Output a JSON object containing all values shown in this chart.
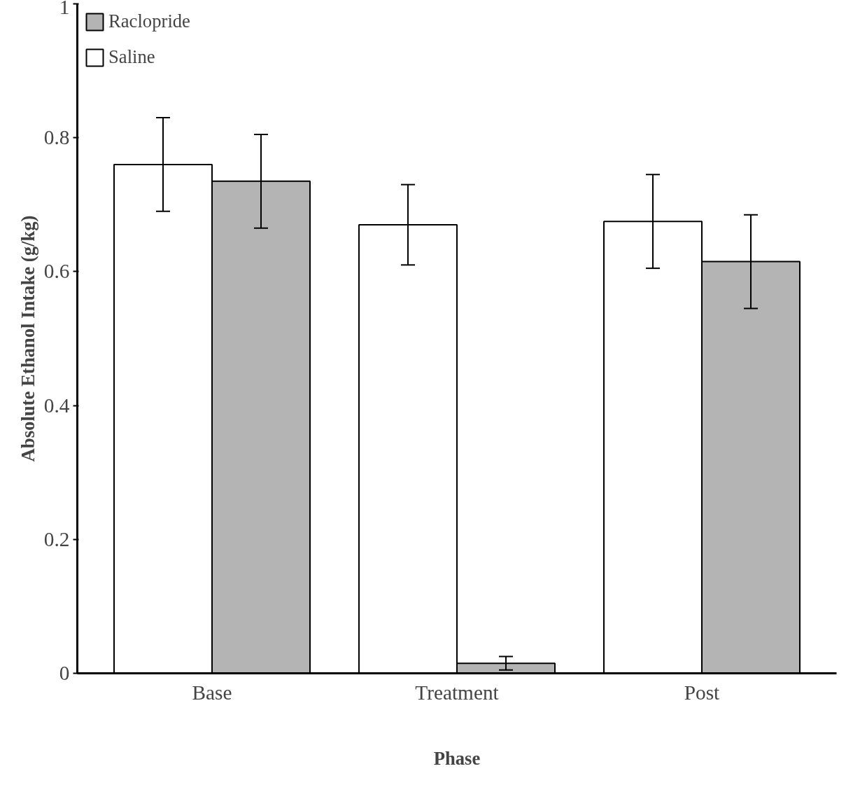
{
  "chart_data": {
    "type": "bar",
    "xlabel": "Phase",
    "ylabel": "Absolute Ethanol Intake (g/kg)",
    "categories": [
      "Base",
      "Treatment",
      "Post"
    ],
    "series": [
      {
        "name": "Saline",
        "color": "#ffffff",
        "values": [
          0.76,
          0.67,
          0.675
        ],
        "errors": [
          0.07,
          0.06,
          0.07
        ]
      },
      {
        "name": "Raclopride",
        "color": "#b4b4b4",
        "values": [
          0.735,
          0.015,
          0.615
        ],
        "errors": [
          0.07,
          0.01,
          0.07
        ]
      }
    ],
    "ylim": [
      0,
      1
    ],
    "yticks": [
      0,
      0.2,
      0.4,
      0.6,
      0.8,
      1
    ],
    "grid": false,
    "legend": "top left"
  }
}
